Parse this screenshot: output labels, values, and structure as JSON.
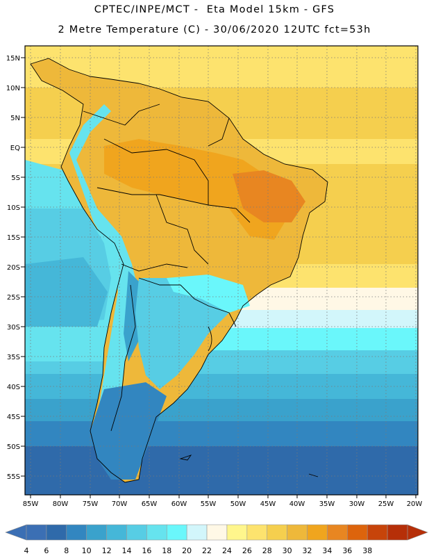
{
  "header": {
    "line1": "CPTEC/INPE/MCT -  Eta Model 15km - GFS",
    "line2": "2 Metre Temperature (C) - 30/06/2020 12UTC fct=53h"
  },
  "map": {
    "lat_labels": [
      "15N",
      "10N",
      "5N",
      "EQ",
      "5S",
      "10S",
      "15S",
      "20S",
      "25S",
      "30S",
      "35S",
      "40S",
      "45S",
      "50S",
      "55S"
    ],
    "lon_labels": [
      "85W",
      "80W",
      "75W",
      "70W",
      "65W",
      "60W",
      "55W",
      "50W",
      "45W",
      "40W",
      "35W",
      "30W",
      "25W",
      "20W"
    ]
  },
  "legend": {
    "values": [
      "4",
      "6",
      "8",
      "10",
      "12",
      "14",
      "16",
      "18",
      "20",
      "22",
      "24",
      "26",
      "28",
      "30",
      "32",
      "34",
      "36",
      "38"
    ],
    "colors": [
      "#3b6fb4",
      "#2f6aaa",
      "#3286c0",
      "#3aa2cc",
      "#45b7d8",
      "#57cde4",
      "#66e3ee",
      "#6af7fb",
      "#d2f6fb",
      "#fff8e6",
      "#fff68c",
      "#fde36e",
      "#f5cf4e",
      "#eeb83a",
      "#f0a51e",
      "#e88621",
      "#dd640c",
      "#c7440a",
      "#b62f08"
    ],
    "low_arrow_color": "#3b6fb4",
    "high_arrow_color": "#b62f08"
  }
}
